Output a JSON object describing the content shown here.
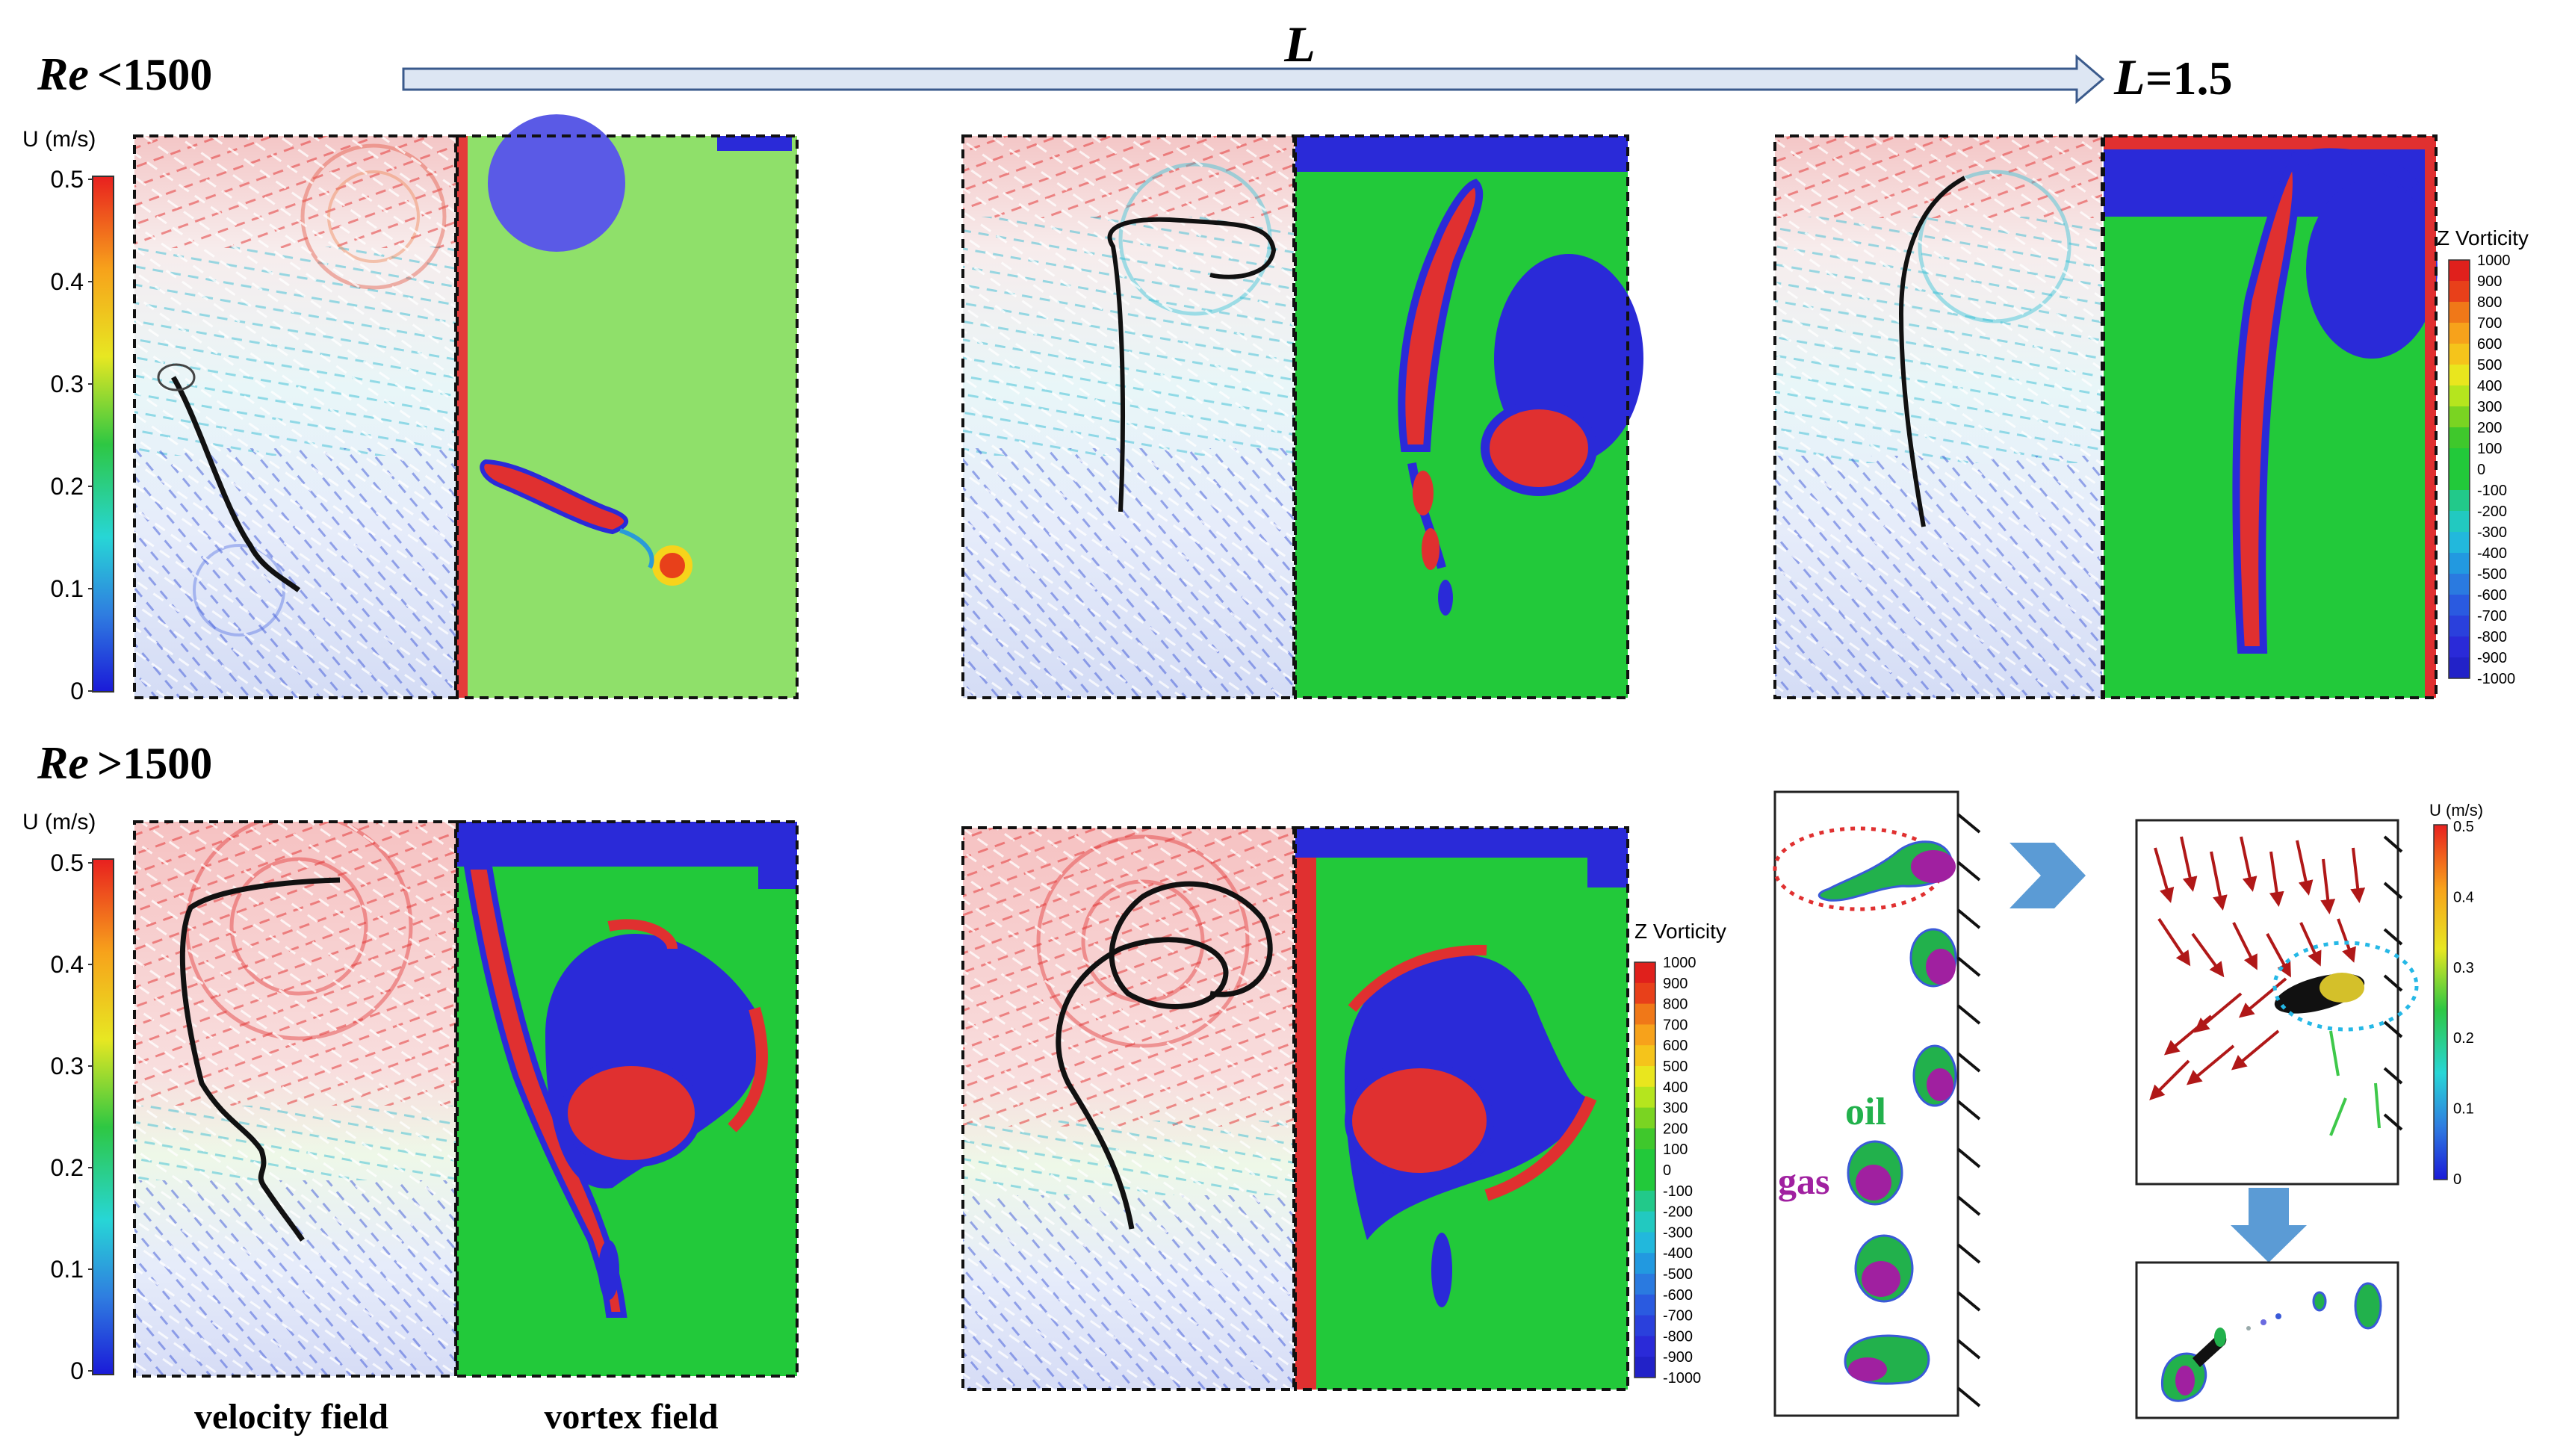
{
  "header": {
    "row1_prefix": "Re",
    "row1_cond": " <1500",
    "row2_prefix": "Re",
    "row2_cond": " >1500",
    "arrow_label": "L",
    "arrow_end_prefix": "L",
    "arrow_end_value": "=1.5"
  },
  "colorbar_velocity": {
    "title": "U (m/s)",
    "ticks": [
      "0.5",
      "0.4",
      "0.3",
      "0.2",
      "0.1",
      "0"
    ]
  },
  "colorbar_vorticity": {
    "title": "Z Vorticity",
    "ticks": [
      "1000",
      "900",
      "800",
      "700",
      "600",
      "500",
      "400",
      "300",
      "200",
      "100",
      "0",
      "-100",
      "-200",
      "-300",
      "-400",
      "-500",
      "-600",
      "-700",
      "-800",
      "-900",
      "-1000"
    ]
  },
  "captions": {
    "velocity": "velocity field",
    "vortex": "vortex field"
  },
  "droplet_labels": {
    "oil": "oil",
    "gas": "gas"
  },
  "colors": {
    "oil": "#22b14c",
    "gas": "#a020a0",
    "arrow_fill": "#dde6f3",
    "arrow_stroke": "#3a5a8c"
  }
}
